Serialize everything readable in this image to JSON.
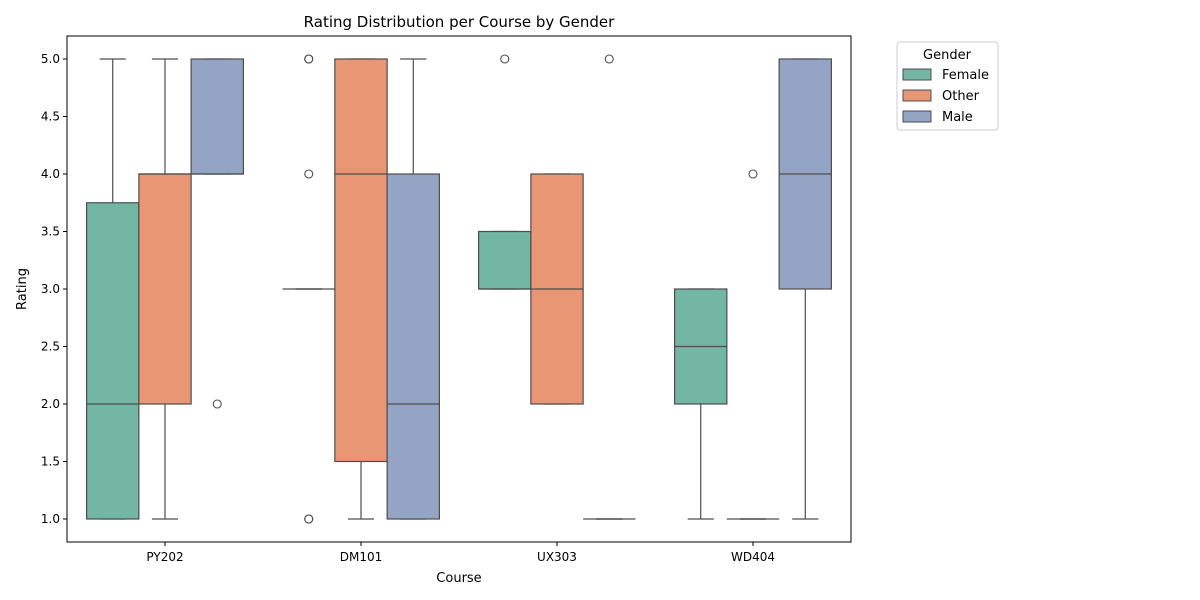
{
  "chart_data": {
    "type": "box",
    "title": "Rating Distribution per Course by Gender",
    "xlabel": "Course",
    "ylabel": "Rating",
    "ylim": [
      0.8,
      5.2
    ],
    "yticks": [
      1.0,
      1.5,
      2.0,
      2.5,
      3.0,
      3.5,
      4.0,
      4.5,
      5.0
    ],
    "ytick_labels": [
      "1.0",
      "1.5",
      "2.0",
      "2.5",
      "3.0",
      "3.5",
      "4.0",
      "4.5",
      "5.0"
    ],
    "categories": [
      "PY202",
      "DM101",
      "UX303",
      "WD404"
    ],
    "grid": false,
    "legend": {
      "title": "Gender",
      "placement": "outside-right-top"
    },
    "series": [
      {
        "name": "Female",
        "color": "#73b6a3",
        "boxes": [
          {
            "min": 1.0,
            "q1": 1.0,
            "median": 2.0,
            "q3": 3.75,
            "max": 5.0,
            "outliers": []
          },
          {
            "min": 3.0,
            "q1": 3.0,
            "median": 3.0,
            "q3": 3.0,
            "max": 3.0,
            "outliers": [
              1.0,
              1.0,
              4.0,
              5.0,
              5.0
            ]
          },
          {
            "min": 3.0,
            "q1": 3.0,
            "median": 3.0,
            "q3": 3.5,
            "max": 3.5,
            "outliers": [
              5.0
            ]
          },
          {
            "min": 1.0,
            "q1": 2.0,
            "median": 2.5,
            "q3": 3.0,
            "max": 3.0,
            "outliers": []
          }
        ]
      },
      {
        "name": "Other",
        "color": "#e99675",
        "boxes": [
          {
            "min": 1.0,
            "q1": 2.0,
            "median": 4.0,
            "q3": 4.0,
            "max": 5.0,
            "outliers": []
          },
          {
            "min": 1.0,
            "q1": 1.5,
            "median": 4.0,
            "q3": 5.0,
            "max": 5.0,
            "outliers": []
          },
          {
            "min": 2.0,
            "q1": 2.0,
            "median": 3.0,
            "q3": 4.0,
            "max": 4.0,
            "outliers": []
          },
          {
            "min": 1.0,
            "q1": 1.0,
            "median": 1.0,
            "q3": 1.0,
            "max": 1.0,
            "outliers": [
              4.0
            ]
          }
        ]
      },
      {
        "name": "Male",
        "color": "#94a4c4",
        "boxes": [
          {
            "min": 4.0,
            "q1": 4.0,
            "median": 4.0,
            "q3": 5.0,
            "max": 5.0,
            "outliers": [
              2.0
            ]
          },
          {
            "min": 1.0,
            "q1": 1.0,
            "median": 2.0,
            "q3": 4.0,
            "max": 5.0,
            "outliers": []
          },
          {
            "min": 1.0,
            "q1": 1.0,
            "median": 1.0,
            "q3": 1.0,
            "max": 1.0,
            "outliers": [
              5.0
            ]
          },
          {
            "min": 1.0,
            "q1": 3.0,
            "median": 4.0,
            "q3": 5.0,
            "max": 5.0,
            "outliers": []
          }
        ]
      }
    ],
    "line_color": "#4d4d4d"
  }
}
